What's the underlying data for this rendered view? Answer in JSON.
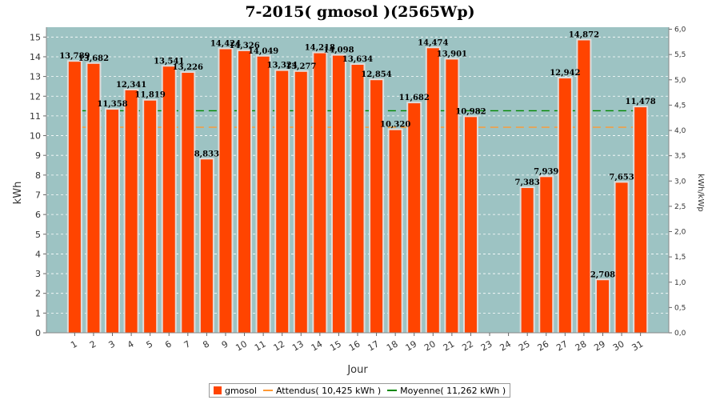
{
  "colors": {
    "plot_bg": "#9dc3c3",
    "bar": "#ff4400",
    "bar_edge": "#dddddd",
    "attendus": "#ff9933",
    "moyenne": "#008800",
    "grid": "#ffffff"
  },
  "chart_data": {
    "type": "bar",
    "title": "7-2015( gmosol )(2565Wp)",
    "xlabel": "Jour",
    "ylabel": "kWh",
    "ylabel_right": "kWh/kWp",
    "ylim": [
      0,
      15.5
    ],
    "ylim_right": [
      0,
      6.04
    ],
    "yticks": [
      "0",
      "1",
      "2",
      "3",
      "4",
      "5",
      "6",
      "7",
      "8",
      "9",
      "10",
      "11",
      "12",
      "13",
      "14",
      "15"
    ],
    "yticks_right": [
      "0,0",
      "0,5",
      "1,0",
      "1,5",
      "2,0",
      "2,5",
      "3,0",
      "3,5",
      "4,0",
      "4,5",
      "5,0",
      "5,5",
      "6,0"
    ],
    "categories": [
      "1",
      "2",
      "3",
      "4",
      "5",
      "6",
      "7",
      "8",
      "9",
      "10",
      "11",
      "12",
      "13",
      "14",
      "15",
      "16",
      "17",
      "18",
      "19",
      "20",
      "21",
      "22",
      "23",
      "24",
      "25",
      "26",
      "27",
      "28",
      "29",
      "30",
      "31"
    ],
    "series": [
      {
        "name": "gmosol",
        "values": [
          13.789,
          13.682,
          11.358,
          12.341,
          11.819,
          13.541,
          13.226,
          8.833,
          14.424,
          14.326,
          14.049,
          13.324,
          13.277,
          14.218,
          14.098,
          13.634,
          12.854,
          10.32,
          11.682,
          14.474,
          13.901,
          10.982,
          null,
          null,
          7.383,
          7.939,
          12.942,
          14.872,
          2.708,
          7.653,
          11.478
        ],
        "labels": [
          "13,789",
          "13,682",
          "11,358",
          "12,341",
          "11,819",
          "13,541",
          "13,226",
          "8,833",
          "14,424",
          "14,326",
          "14,049",
          "13,324",
          "13,277",
          "14,218",
          "14,098",
          "13,634",
          "12,854",
          "10,320",
          "11,682",
          "14,474",
          "13,901",
          "10,982",
          "",
          "",
          "7,383",
          "7,939",
          "12,942",
          "14,872",
          "2,708",
          "7,653",
          "11,478"
        ]
      },
      {
        "name": "Attendus( 10,425 kWh )",
        "type": "line",
        "value": 10.425
      },
      {
        "name": "Moyenne( 11,262 kWh )",
        "type": "line",
        "value": 11.262
      }
    ],
    "grid": true,
    "legend": "bottom-center"
  }
}
